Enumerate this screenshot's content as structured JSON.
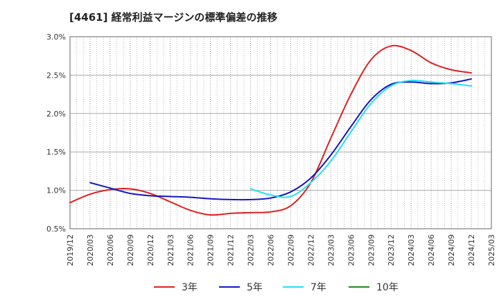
{
  "chart_data": {
    "type": "line",
    "title": "[4461]  経常利益マージンの標準偏差の推移",
    "xlabel": "",
    "ylabel": "",
    "ylim": [
      0.5,
      3.0
    ],
    "yticks": [
      "0.5%",
      "1.0%",
      "1.5%",
      "2.0%",
      "2.5%",
      "3.0%"
    ],
    "ytick_values": [
      0.5,
      1.0,
      1.5,
      2.0,
      2.5,
      3.0
    ],
    "x_categories": [
      "2019/12",
      "2020/03",
      "2020/06",
      "2020/09",
      "2020/12",
      "2021/03",
      "2021/06",
      "2021/09",
      "2021/12",
      "2022/03",
      "2022/06",
      "2022/09",
      "2022/12",
      "2023/03",
      "2023/06",
      "2023/09",
      "2023/12",
      "2024/03",
      "2024/06",
      "2024/09",
      "2024/12",
      "2025/03"
    ],
    "grid": true,
    "legend_position": "bottom",
    "series": [
      {
        "name": "3年",
        "color": "#dd1f1f",
        "start_index": 0,
        "values": [
          0.84,
          0.95,
          1.01,
          1.02,
          0.96,
          0.85,
          0.74,
          0.68,
          0.7,
          0.71,
          0.72,
          0.8,
          1.1,
          1.68,
          2.25,
          2.7,
          2.88,
          2.82,
          2.66,
          2.57,
          2.53
        ]
      },
      {
        "name": "5年",
        "color": "#1414c8",
        "start_index": 1,
        "values": [
          1.1,
          1.03,
          0.96,
          0.93,
          0.92,
          0.91,
          0.89,
          0.88,
          0.88,
          0.9,
          0.98,
          1.16,
          1.46,
          1.83,
          2.18,
          2.38,
          2.41,
          2.39,
          2.4,
          2.45
        ]
      },
      {
        "name": "7年",
        "color": "#22e0ee",
        "start_index": 9,
        "values": [
          1.02,
          0.94,
          0.92,
          1.1,
          1.38,
          1.76,
          2.13,
          2.36,
          2.43,
          2.41,
          2.39,
          2.36
        ]
      },
      {
        "name": "10年",
        "color": "#1f8a1f",
        "start_index": 0,
        "values": []
      }
    ]
  }
}
